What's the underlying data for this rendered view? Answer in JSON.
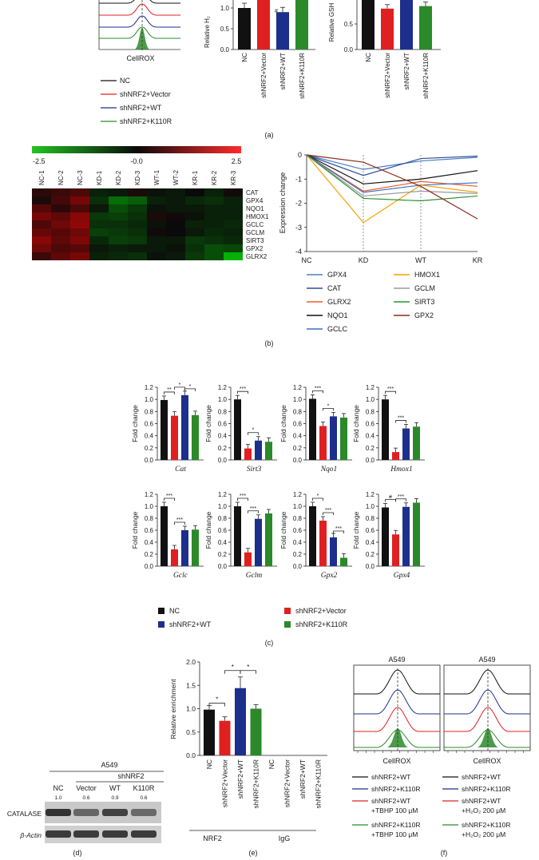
{
  "colors": {
    "NC": "#111111",
    "Vector": "#e02020",
    "WT": "#1c2f8c",
    "K110R": "#2a8a2a"
  },
  "panel_labels": {
    "a": "(a)",
    "b": "(b)",
    "c": "(c)",
    "d": "(d)",
    "e": "(e)",
    "f": "(f)"
  },
  "panel_a": {
    "hist_xlabel": "CellROX",
    "legend": [
      "NC",
      "shNRF2+Vector",
      "shNRF2+WT",
      "shNRF2+K110R"
    ],
    "bar1": {
      "ylabel": "Relative H₂",
      "yticks": [
        "1.0",
        "0.5",
        "0.0"
      ],
      "categories": [
        "NC",
        "shNRF2+Vector",
        "shNRF2+WT",
        "shNRF2+K110R"
      ],
      "values": [
        1.0,
        1.2,
        0.9,
        1.25
      ],
      "sig": "#"
    },
    "bar2": {
      "ylabel": "Relative GSH",
      "yticks": [
        "0.5",
        "0.0"
      ],
      "categories": [
        "NC",
        "shNRF2+Vector",
        "shNRF2+WT",
        "shNRF2+K110R"
      ],
      "values": [
        1.0,
        0.8,
        1.0,
        0.85
      ]
    }
  },
  "panel_b": {
    "scale_ticks": [
      "-2.5",
      "-0.0",
      "2.5"
    ],
    "columns": [
      "NC-1",
      "NC-2",
      "NC-3",
      "KD-1",
      "KD-2",
      "KD-3",
      "WT-1",
      "WT-2",
      "KR-1",
      "KR-2",
      "KR-3"
    ],
    "rows": [
      "CAT",
      "GPX4",
      "NQO1",
      "HMOX1",
      "GCLC",
      "GCLM",
      "SIRT3",
      "GPX2",
      "GLRX2"
    ],
    "line_ylabel": "Expression change",
    "line_yticks": [
      "0",
      "-1",
      "-2",
      "-3",
      "-4"
    ],
    "line_xticks": [
      "NC",
      "KD",
      "WT",
      "KR"
    ],
    "legend": [
      "GPX4",
      "HMOX1",
      "CAT",
      "GCLM",
      "GLRX2",
      "SIRT3",
      "NQO1",
      "GPX2",
      "GCLC"
    ]
  },
  "panel_c": {
    "ylabel": "Fold change",
    "yticks": [
      "1.2",
      "1.0",
      "0.8",
      "0.6",
      "0.4",
      "0.2",
      "0.0"
    ],
    "charts": [
      {
        "gene": "Cat",
        "values": [
          0.99,
          0.73,
          1.07,
          0.74
        ],
        "sigs": [
          "**",
          "*",
          "*"
        ]
      },
      {
        "gene": "Sirt3",
        "values": [
          1.0,
          0.19,
          0.32,
          0.3
        ],
        "sigs": [
          "***",
          "*"
        ]
      },
      {
        "gene": "Nqo1",
        "values": [
          1.01,
          0.56,
          0.72,
          0.7
        ],
        "sigs": [
          "***",
          "*"
        ]
      },
      {
        "gene": "Hmox1",
        "values": [
          1.0,
          0.13,
          0.52,
          0.55
        ],
        "sigs": [
          "***",
          "***"
        ]
      },
      {
        "gene": "Gclc",
        "values": [
          1.0,
          0.28,
          0.6,
          0.61
        ],
        "sigs": [
          "***",
          "***"
        ]
      },
      {
        "gene": "Gclm",
        "values": [
          1.0,
          0.23,
          0.79,
          0.88
        ],
        "sigs": [
          "***",
          "***"
        ]
      },
      {
        "gene": "Gpx2",
        "values": [
          1.0,
          0.76,
          0.48,
          0.14
        ],
        "sigs": [
          "*",
          "***",
          "***"
        ]
      },
      {
        "gene": "Gpx4",
        "values": [
          0.98,
          0.53,
          0.99,
          1.06
        ],
        "sigs": [
          "#",
          "***"
        ]
      }
    ],
    "legend": [
      "NC",
      "shNRF2+Vector",
      "shNRF2+WT",
      "shNRF2+K110R"
    ]
  },
  "panel_d": {
    "cell_line": "A549",
    "group": "shNRF2",
    "lanes": [
      "NC",
      "Vector",
      "WT",
      "K110R"
    ],
    "quant": [
      "1.0",
      "0.6",
      "0.9",
      "0.6"
    ],
    "rows": [
      "CATALASE",
      "β-Actin"
    ]
  },
  "panel_e": {
    "ylabel": "Relative enrichment",
    "yticks": [
      "2.0",
      "1.5",
      "1.0",
      "0.5",
      "0.0"
    ],
    "categories": [
      "NC",
      "shNRF2+Vector",
      "shNRF2+WT",
      "shNRF2+K110R",
      "NC",
      "shNRF2+Vector",
      "shNRF2+WT",
      "shNRF2+K110R"
    ],
    "values": [
      0.98,
      0.74,
      1.44,
      1.0,
      0,
      0,
      0,
      0
    ],
    "sigs": [
      "*",
      "*",
      "*"
    ],
    "groups": [
      "NRF2",
      "IgG"
    ]
  },
  "panel_f": {
    "title_left": "A549",
    "title_right": "A549",
    "xlabel": "CellROX",
    "legend_left": [
      "shNRF2+WT",
      "shNRF2+K110R",
      "shNRF2+WT +TBHP 100 μM",
      "shNRF2+K110R +TBHP 100 μM"
    ],
    "legend_right": [
      "shNRF2+WT",
      "shNRF2+K110R",
      "shNRF2+WT +H₂O₂ 200 μM",
      "shNRF2+K110R +H₂O₂ 200 μM"
    ]
  }
}
